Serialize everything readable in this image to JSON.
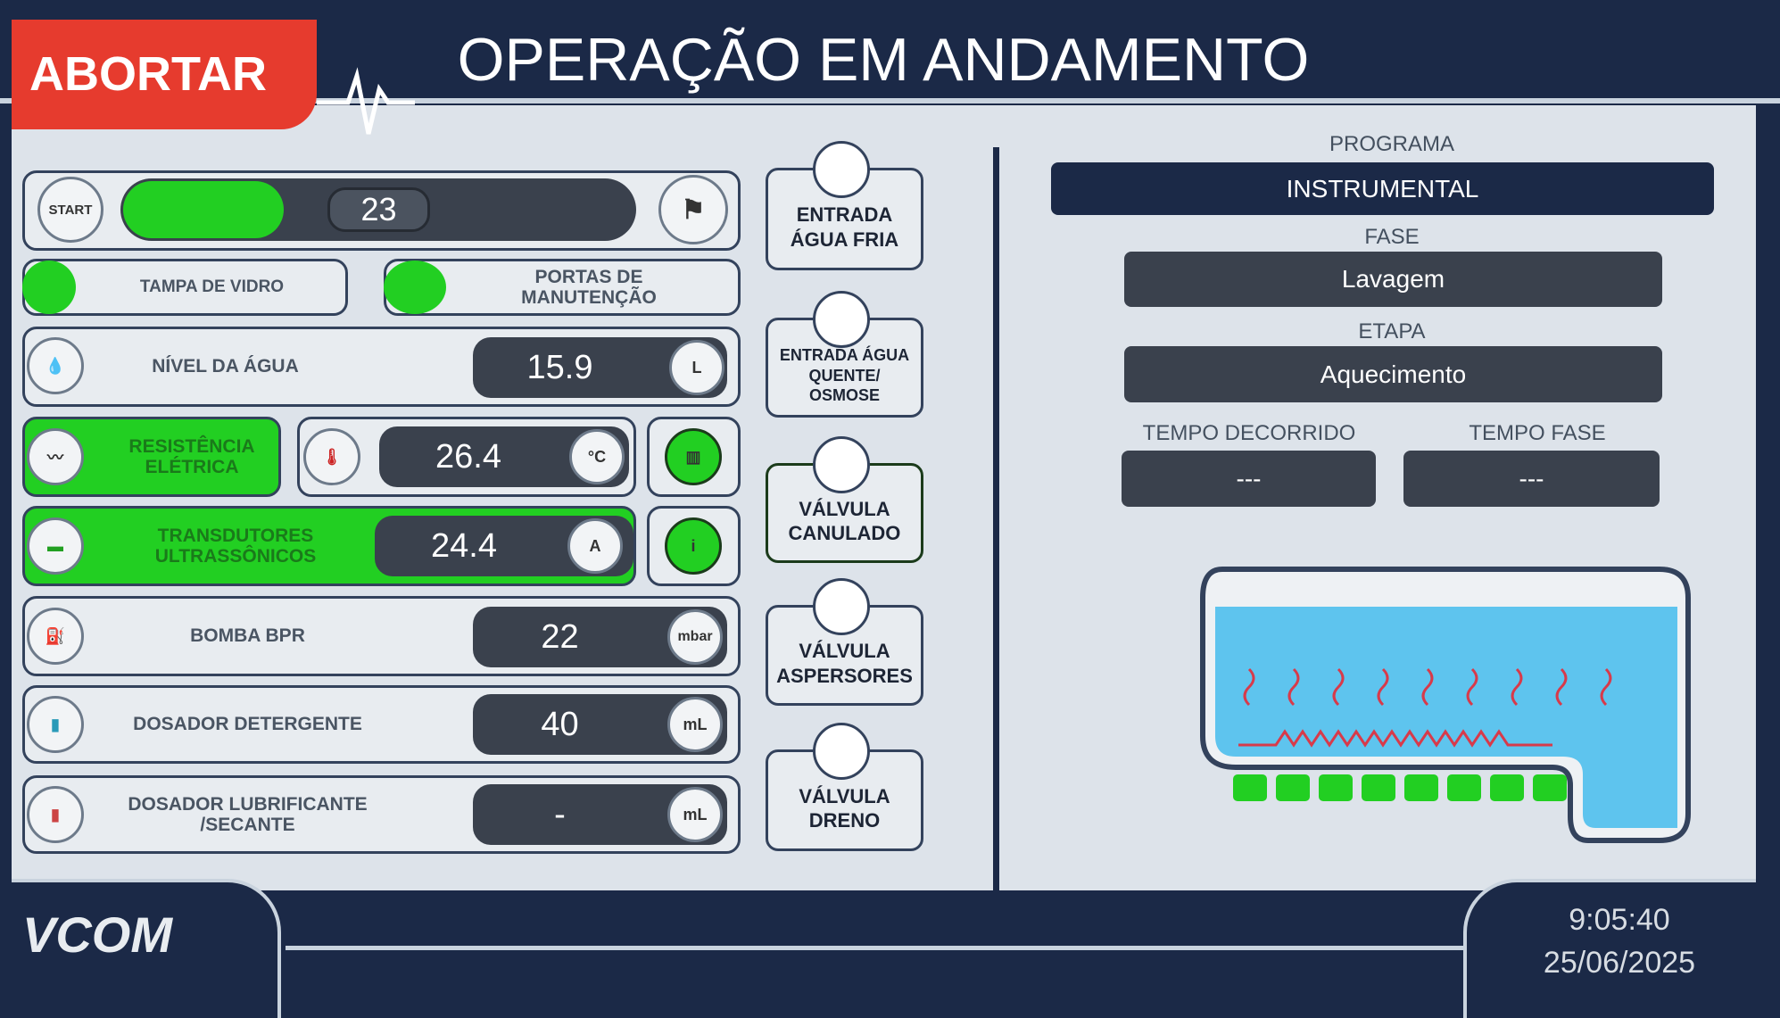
{
  "header": {
    "abort_button": "ABORTAR",
    "title": "OPERAÇÃO EM ANDAMENTO"
  },
  "progress": {
    "start_label": "START",
    "value": 23
  },
  "doors": [
    {
      "label": "TAMPA DE VIDRO"
    },
    {
      "label": "PORTAS DE\nMANUTENÇÃO"
    }
  ],
  "sensors": [
    {
      "label": "NÍVEL DA ÁGUA",
      "value": 15.9,
      "unit": "L"
    },
    {
      "label": "RESISTÊNCIA\nELÉTRICA",
      "value": 26.4,
      "unit": "°C"
    },
    {
      "label": "TRANSDUTORES\nULTRASSÔNICOS",
      "value": 24.4,
      "unit": "A"
    },
    {
      "label": "BOMBA BPR",
      "value": 22,
      "unit": "mbar"
    },
    {
      "label": "DOSADOR DETERGENTE",
      "value": 40,
      "unit": "mL"
    },
    {
      "label": "DOSADOR LUBRIFICANTE\n/SECANTE",
      "value": "-",
      "unit": "mL"
    }
  ],
  "valves": [
    {
      "label": "ENTRADA\nÁGUA FRIA"
    },
    {
      "label": "ENTRADA ÁGUA\nQUENTE/\nOSMOSE"
    },
    {
      "label": "VÁLVULA\nCANULADO"
    },
    {
      "label": "VÁLVULA\nASPERSORES"
    },
    {
      "label": "VÁLVULA\nDRENO"
    }
  ],
  "program": {
    "programa_label": "PROGRAMA",
    "programa": "INSTRUMENTAL",
    "fase_label": "FASE",
    "fase": "Lavagem",
    "etapa_label": "ETAPA",
    "etapa": "Aquecimento",
    "tempo_decorrido_label": "TEMPO DECORRIDO",
    "tempo_decorrido": "---",
    "tempo_fase_label": "TEMPO FASE",
    "tempo_fase": "---"
  },
  "footer": {
    "logo": "VCOM",
    "time": "9:05:40",
    "date": "25/06/2025"
  }
}
